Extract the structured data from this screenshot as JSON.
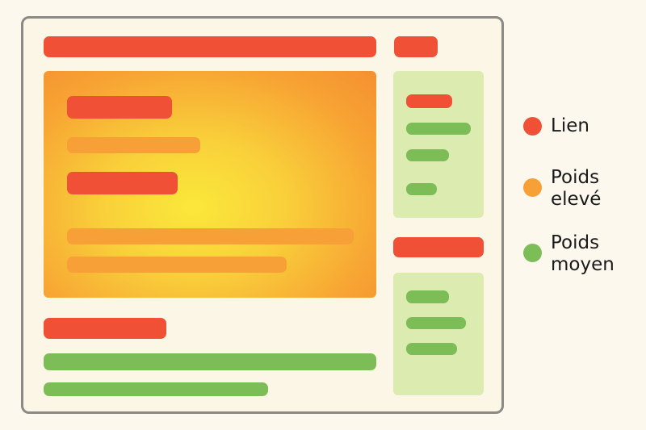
{
  "colors": {
    "link": "#ef5036",
    "high_weight": "#f7a038",
    "medium_weight": "#7dbd57",
    "panel": "#dcebb0"
  },
  "legend": [
    {
      "label": "Lien",
      "color": "#ef5036"
    },
    {
      "label": "Poids\nelevé",
      "color": "#f7a038"
    },
    {
      "label": "Poids\nmoyen",
      "color": "#7dbd57"
    }
  ]
}
